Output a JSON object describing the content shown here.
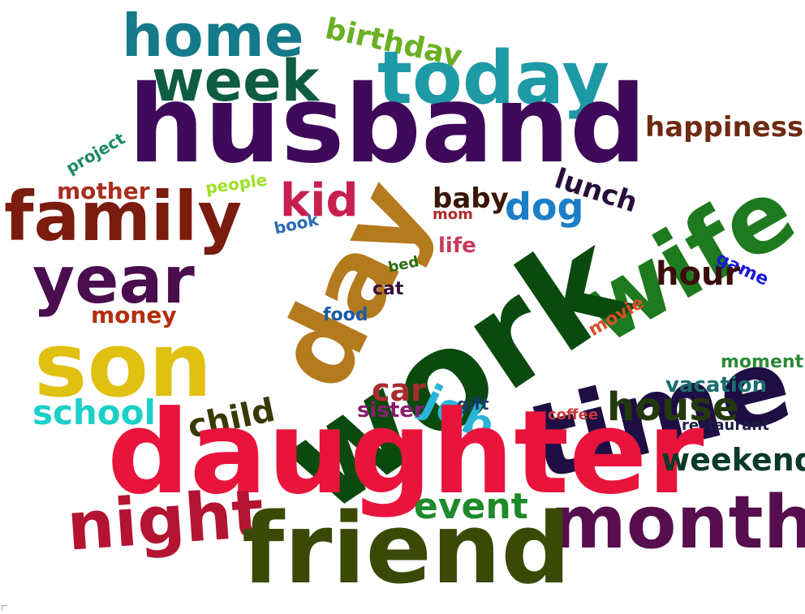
{
  "words": [
    {
      "id": "home",
      "text": "home",
      "color": "#157a8a"
    },
    {
      "id": "birthday",
      "text": "birthday",
      "color": "#6ab023"
    },
    {
      "id": "week",
      "text": "week",
      "color": "#0f5c44"
    },
    {
      "id": "today",
      "text": "today",
      "color": "#1e9aa6"
    },
    {
      "id": "husband",
      "text": "husband",
      "color": "#3f0a5a"
    },
    {
      "id": "happiness",
      "text": "happiness",
      "color": "#6e2a12"
    },
    {
      "id": "project",
      "text": "project",
      "color": "#1a8a66"
    },
    {
      "id": "family",
      "text": "family",
      "color": "#7a1c0e"
    },
    {
      "id": "mother",
      "text": "mother",
      "color": "#a82e1e"
    },
    {
      "id": "people",
      "text": "people",
      "color": "#9ee024"
    },
    {
      "id": "kid",
      "text": "kid",
      "color": "#c8204e"
    },
    {
      "id": "baby",
      "text": "baby",
      "color": "#3a1606"
    },
    {
      "id": "mom",
      "text": "mom",
      "color": "#b02a2a"
    },
    {
      "id": "dog",
      "text": "dog",
      "color": "#1a7ec8"
    },
    {
      "id": "lunch",
      "text": "lunch",
      "color": "#2a0e3e"
    },
    {
      "id": "wife",
      "text": "wife",
      "color": "#1e7a1e"
    },
    {
      "id": "day",
      "text": "day",
      "color": "#b47a1e"
    },
    {
      "id": "book",
      "text": "book",
      "color": "#2a6ab4"
    },
    {
      "id": "life",
      "text": "life",
      "color": "#c83a5a"
    },
    {
      "id": "year",
      "text": "year",
      "color": "#4a0e4e"
    },
    {
      "id": "game",
      "text": "game",
      "color": "#1818d8"
    },
    {
      "id": "hour",
      "text": "hour",
      "color": "#3a0e0e"
    },
    {
      "id": "bed",
      "text": "bed",
      "color": "#2a6e0e"
    },
    {
      "id": "cat",
      "text": "cat",
      "color": "#3a0e3e"
    },
    {
      "id": "work",
      "text": "work",
      "color": "#0a4a0e"
    },
    {
      "id": "movie",
      "text": "movie",
      "color": "#d8502a"
    },
    {
      "id": "son",
      "text": "son",
      "color": "#e0c010"
    },
    {
      "id": "money",
      "text": "money",
      "color": "#b42e0e"
    },
    {
      "id": "food",
      "text": "food",
      "color": "#1a5aa4"
    },
    {
      "id": "time",
      "text": "time",
      "color": "#1e0e44"
    },
    {
      "id": "moment",
      "text": "moment",
      "color": "#2a8a3a"
    },
    {
      "id": "job",
      "text": "job",
      "color": "#2ab4d8"
    },
    {
      "id": "vacation",
      "text": "vacation",
      "color": "#1a6e6e"
    },
    {
      "id": "car",
      "text": "car",
      "color": "#a82e2e"
    },
    {
      "id": "school",
      "text": "school",
      "color": "#1ad0c8"
    },
    {
      "id": "child",
      "text": "child",
      "color": "#3a3a06"
    },
    {
      "id": "sister",
      "text": "sister",
      "color": "#8a1e6e"
    },
    {
      "id": "gift",
      "text": "gift",
      "color": "#1a3a6e"
    },
    {
      "id": "house",
      "text": "house",
      "color": "#243a0e"
    },
    {
      "id": "coffee",
      "text": "coffee",
      "color": "#c83a3a"
    },
    {
      "id": "restaurant",
      "text": "restaurant",
      "color": "#1e1e44"
    },
    {
      "id": "daughter",
      "text": "daughter",
      "color": "#e8143c"
    },
    {
      "id": "weekend",
      "text": "weekend",
      "color": "#0a3a2a"
    },
    {
      "id": "event",
      "text": "event",
      "color": "#1e8a2a"
    },
    {
      "id": "month",
      "text": "month",
      "color": "#560e4e"
    },
    {
      "id": "night",
      "text": "night",
      "color": "#b41432"
    },
    {
      "id": "friend",
      "text": "friend",
      "color": "#3a4a06"
    }
  ]
}
